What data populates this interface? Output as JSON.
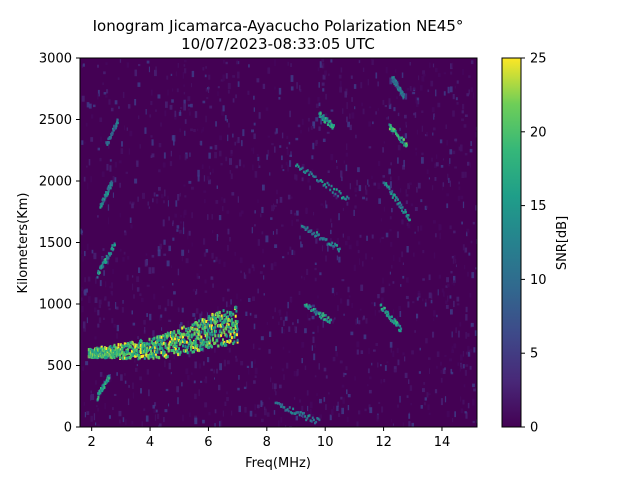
{
  "chart_data": {
    "type": "heatmap",
    "title": "Ionogram Jicamarca-Ayacucho Polarization NE45°",
    "subtitle": "10/07/2023-08:33:05 UTC",
    "xlabel": "Freq(MHz)",
    "ylabel": "Kilometers(Km)",
    "xlim": [
      1.6,
      15.2
    ],
    "ylim": [
      0,
      3000
    ],
    "xticks": [
      2,
      4,
      6,
      8,
      10,
      12,
      14
    ],
    "yticks": [
      0,
      500,
      1000,
      1500,
      2000,
      2500,
      3000
    ],
    "colorbar": {
      "label": "SNR[dB]",
      "range": [
        0,
        25
      ],
      "ticks": [
        0,
        5,
        10,
        15,
        20,
        25
      ],
      "colormap": "viridis"
    },
    "echo_traces": [
      {
        "freq_mhz": [
          1.9,
          2.5,
          3.5,
          4.5,
          5.5,
          6.2,
          7.0
        ],
        "range_km": [
          610,
          620,
          635,
          670,
          740,
          800,
          840
        ],
        "snr_db": 24
      },
      {
        "freq_mhz": [
          2.2,
          2.6
        ],
        "range_km": [
          250,
          420
        ],
        "snr_db": 18
      },
      {
        "freq_mhz": [
          2.2,
          2.8
        ],
        "range_km": [
          1250,
          1500
        ],
        "snr_db": 17
      },
      {
        "freq_mhz": [
          2.3,
          2.7
        ],
        "range_km": [
          1800,
          2000
        ],
        "snr_db": 14
      },
      {
        "freq_mhz": [
          2.5,
          2.9
        ],
        "range_km": [
          2300,
          2500
        ],
        "snr_db": 12
      },
      {
        "freq_mhz": [
          8.3,
          9.8
        ],
        "range_km": [
          190,
          50
        ],
        "snr_db": 14
      },
      {
        "freq_mhz": [
          9.3,
          10.2
        ],
        "range_km": [
          1000,
          870
        ],
        "snr_db": 18
      },
      {
        "freq_mhz": [
          9.2,
          10.5
        ],
        "range_km": [
          1650,
          1450
        ],
        "snr_db": 14
      },
      {
        "freq_mhz": [
          9.0,
          10.8
        ],
        "range_km": [
          2150,
          1850
        ],
        "snr_db": 16
      },
      {
        "freq_mhz": [
          9.8,
          10.3
        ],
        "range_km": [
          2550,
          2450
        ],
        "snr_db": 19
      },
      {
        "freq_mhz": [
          11.9,
          12.6
        ],
        "range_km": [
          1000,
          800
        ],
        "snr_db": 20
      },
      {
        "freq_mhz": [
          12.0,
          12.9
        ],
        "range_km": [
          2000,
          1700
        ],
        "snr_db": 16
      },
      {
        "freq_mhz": [
          12.2,
          12.8
        ],
        "range_km": [
          2450,
          2300
        ],
        "snr_db": 21
      },
      {
        "freq_mhz": [
          12.3,
          12.7
        ],
        "range_km": [
          2850,
          2700
        ],
        "snr_db": 13
      }
    ],
    "grid": false
  }
}
